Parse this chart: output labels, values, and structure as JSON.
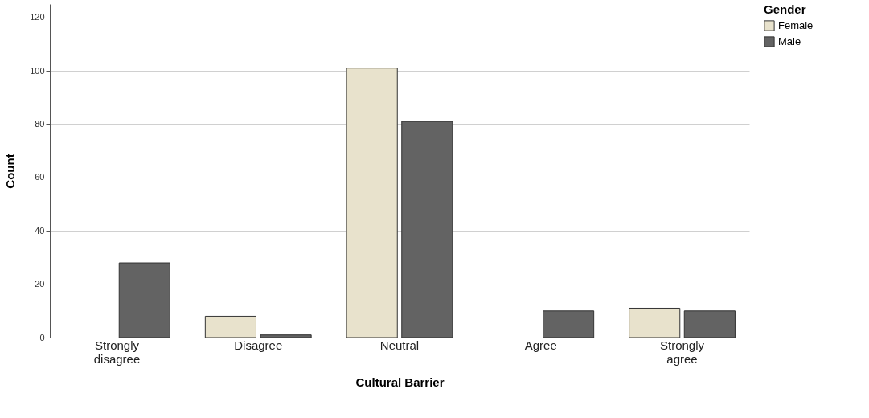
{
  "chart_data": {
    "type": "bar",
    "xlabel": "Cultural Barrier",
    "ylabel": "Count",
    "legend_title": "Gender",
    "categories": [
      "Strongly disagree",
      "Disagree",
      "Neutral",
      "Agree",
      "Strongly agree"
    ],
    "series": [
      {
        "name": "Female",
        "color": "#e8e2cc",
        "values": [
          null,
          8,
          101,
          null,
          11
        ]
      },
      {
        "name": "Male",
        "color": "#636363",
        "values": [
          28,
          1,
          81,
          10,
          10
        ]
      }
    ],
    "ylim": [
      0,
      125
    ],
    "yticks": [
      0,
      20,
      40,
      60,
      80,
      100,
      120
    ],
    "grid": "y",
    "legend": "top right"
  }
}
